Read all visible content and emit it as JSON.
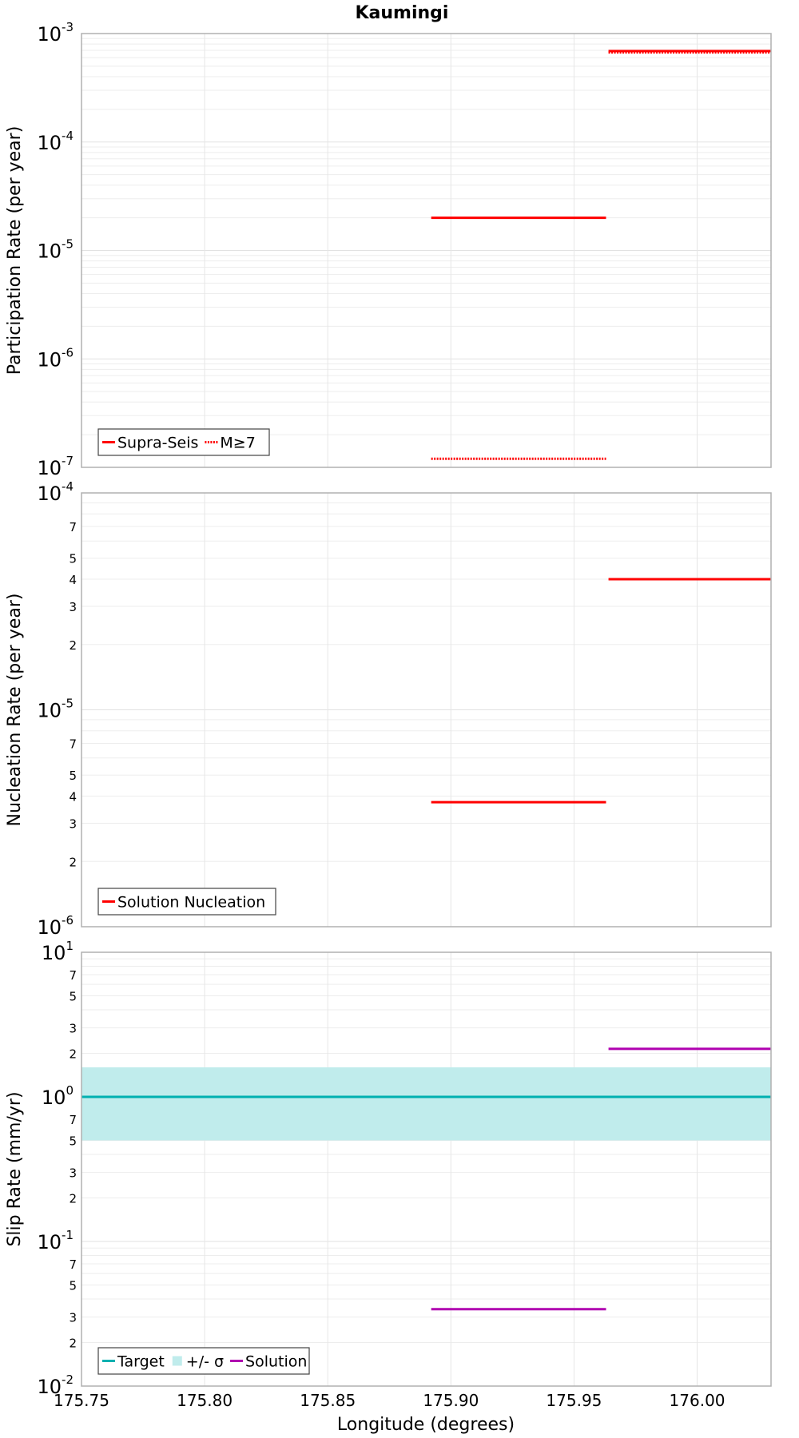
{
  "chart_data": [
    {
      "type": "line",
      "title": "Kaumingi",
      "ylabel": "Participation Rate (per year)",
      "xlabel": "",
      "yscale": "log",
      "ylim": [
        1e-07,
        0.001
      ],
      "xlim": [
        175.75,
        176.03
      ],
      "y_tick_labels": [
        {
          "value": 0.001,
          "base": "10",
          "exp": "-3"
        },
        {
          "value": 0.0001,
          "base": "10",
          "exp": "-4"
        },
        {
          "value": 1e-05,
          "base": "10",
          "exp": "-5"
        },
        {
          "value": 1e-06,
          "base": "10",
          "exp": "-6"
        },
        {
          "value": 1e-07,
          "base": "10",
          "exp": "-7"
        }
      ],
      "minor_tick_labels": [],
      "grid": true,
      "legend": "bottom-left",
      "series": [
        {
          "name": "Supra-Seis",
          "color": "#ff0000",
          "dash": "solid",
          "segments": [
            {
              "x": [
                175.892,
                175.963
              ],
              "y": 2e-05
            },
            {
              "x": [
                175.964,
                176.03
              ],
              "y": 0.00069
            }
          ]
        },
        {
          "name": "M≥7",
          "color": "#ff0000",
          "dash": "dotted",
          "segments": [
            {
              "x": [
                175.892,
                175.963
              ],
              "y": 1.2e-07
            },
            {
              "x": [
                175.964,
                176.03
              ],
              "y": 0.00067
            }
          ]
        }
      ],
      "bands": []
    },
    {
      "type": "line",
      "title": "",
      "ylabel": "Nucleation Rate (per year)",
      "xlabel": "",
      "yscale": "log",
      "ylim": [
        1e-06,
        0.0001
      ],
      "xlim": [
        175.75,
        176.03
      ],
      "y_tick_labels": [
        {
          "value": 0.0001,
          "base": "10",
          "exp": "-4"
        },
        {
          "value": 1e-05,
          "base": "10",
          "exp": "-5"
        },
        {
          "value": 1e-06,
          "base": "10",
          "exp": "-6"
        }
      ],
      "minor_tick_labels": [
        {
          "value": 7e-05,
          "label": "7"
        },
        {
          "value": 5e-05,
          "label": "5"
        },
        {
          "value": 4e-05,
          "label": "4"
        },
        {
          "value": 3e-05,
          "label": "3"
        },
        {
          "value": 2e-05,
          "label": "2"
        },
        {
          "value": 7e-06,
          "label": "7"
        },
        {
          "value": 5e-06,
          "label": "5"
        },
        {
          "value": 4e-06,
          "label": "4"
        },
        {
          "value": 3e-06,
          "label": "3"
        },
        {
          "value": 2e-06,
          "label": "2"
        }
      ],
      "grid": true,
      "legend": "bottom-left",
      "series": [
        {
          "name": "Solution Nucleation",
          "color": "#ff0000",
          "dash": "solid",
          "segments": [
            {
              "x": [
                175.892,
                175.963
              ],
              "y": 3.75e-06
            },
            {
              "x": [
                175.964,
                176.03
              ],
              "y": 4e-05
            }
          ]
        }
      ],
      "bands": []
    },
    {
      "type": "line",
      "title": "",
      "ylabel": "Slip Rate (mm/yr)",
      "xlabel": "Longitude (degrees)",
      "yscale": "log",
      "ylim": [
        0.01,
        10
      ],
      "xlim": [
        175.75,
        176.03
      ],
      "x_tick_labels": [
        "175.75",
        "175.80",
        "175.85",
        "175.90",
        "175.95",
        "176.00"
      ],
      "x_tick_values": [
        175.75,
        175.8,
        175.85,
        175.9,
        175.95,
        176.0
      ],
      "y_tick_labels": [
        {
          "value": 10,
          "base": "10",
          "exp": "1"
        },
        {
          "value": 1,
          "base": "10",
          "exp": "0"
        },
        {
          "value": 0.1,
          "base": "10",
          "exp": "-1"
        },
        {
          "value": 0.01,
          "base": "10",
          "exp": "-2"
        }
      ],
      "minor_tick_labels": [
        {
          "value": 7,
          "label": "7"
        },
        {
          "value": 5,
          "label": "5"
        },
        {
          "value": 3,
          "label": "3"
        },
        {
          "value": 2,
          "label": "2"
        },
        {
          "value": 0.7,
          "label": "7"
        },
        {
          "value": 0.5,
          "label": "5"
        },
        {
          "value": 0.3,
          "label": "3"
        },
        {
          "value": 0.2,
          "label": "2"
        },
        {
          "value": 0.07,
          "label": "7"
        },
        {
          "value": 0.05,
          "label": "5"
        },
        {
          "value": 0.03,
          "label": "3"
        },
        {
          "value": 0.02,
          "label": "2"
        }
      ],
      "grid": true,
      "legend": "bottom-left",
      "series": [
        {
          "name": "Target",
          "color": "#00b0b0",
          "dash": "solid",
          "segments": [
            {
              "x": [
                175.75,
                176.03
              ],
              "y": 1.0
            }
          ]
        },
        {
          "name": "Solution",
          "color": "#b000b0",
          "dash": "solid",
          "segments": [
            {
              "x": [
                175.892,
                175.963
              ],
              "y": 0.034
            },
            {
              "x": [
                175.964,
                176.03
              ],
              "y": 2.15
            }
          ]
        }
      ],
      "bands": [
        {
          "name": "+/- σ",
          "color": "#c0ecec",
          "x": [
            175.75,
            176.03
          ],
          "y": [
            0.5,
            1.6
          ]
        }
      ]
    }
  ]
}
